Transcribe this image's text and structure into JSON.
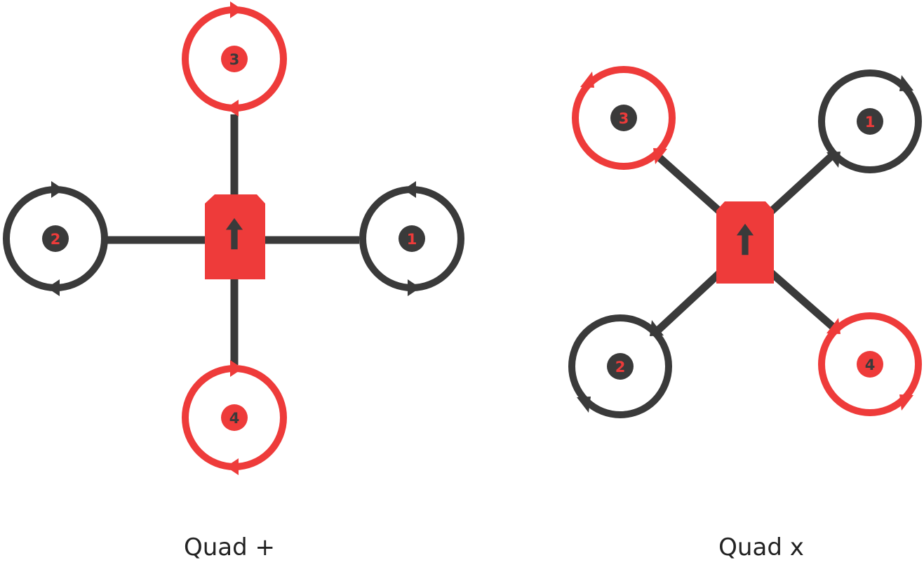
{
  "colors": {
    "red": "#ee3b3a",
    "dark": "#3a3a3a",
    "background": "#ffffff"
  },
  "diagrams": [
    {
      "caption": "Quad +",
      "motors": [
        {
          "label": "1",
          "color": "dark",
          "direction": "ccw"
        },
        {
          "label": "2",
          "color": "dark",
          "direction": "ccw"
        },
        {
          "label": "3",
          "color": "red",
          "direction": "cw"
        },
        {
          "label": "4",
          "color": "red",
          "direction": "cw"
        }
      ]
    },
    {
      "caption": "Quad x",
      "motors": [
        {
          "label": "1",
          "color": "dark",
          "direction": "ccw"
        },
        {
          "label": "2",
          "color": "dark",
          "direction": "ccw"
        },
        {
          "label": "3",
          "color": "red",
          "direction": "cw"
        },
        {
          "label": "4",
          "color": "red",
          "direction": "cw"
        }
      ]
    }
  ]
}
